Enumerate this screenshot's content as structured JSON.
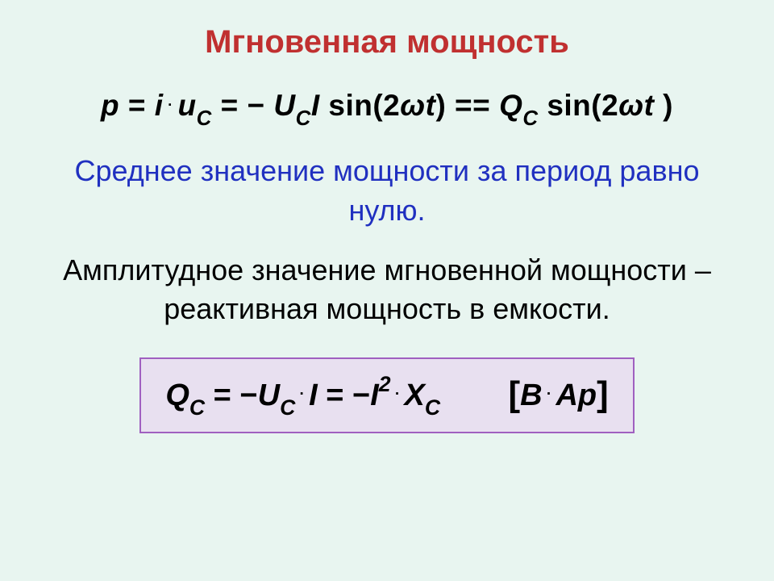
{
  "title": {
    "text": "Мгновенная мощность",
    "color": "#c03030"
  },
  "equation1": {
    "color": "#000000",
    "p": "p",
    "eq": " = ",
    "i": "i",
    "dot": " · ",
    "u": "u",
    "subC": "C",
    "minus": " − ",
    "U": "U",
    "I": "I",
    "sin": " sin(2",
    "omega": "ω",
    "t": "t",
    "close": ")",
    "eqeq": " == ",
    "Q": "Q",
    "sin2": " sin(2",
    "close2": " )"
  },
  "blueText": {
    "content": "Среднее значение мощности за период равно нулю.",
    "color": "#2030c0"
  },
  "blackText": {
    "content": "Амплитудное значение мгновенной мощности – реактивная мощность в емкости.",
    "color": "#000000"
  },
  "equation2": {
    "borderColor": "#a060c0",
    "bgColor": "#e8e0f0",
    "color": "#000000",
    "Q": "Q",
    "subC": "C",
    "eq": " = −",
    "U": "U",
    "dot": " · ",
    "I": "I",
    "eq2": " = −",
    "I2": "I",
    "sup2": "2",
    "X": "X",
    "lbracket": "[",
    "B": "B",
    "Ap": "Aр",
    "rbracket": "]",
    "gap": "        "
  }
}
